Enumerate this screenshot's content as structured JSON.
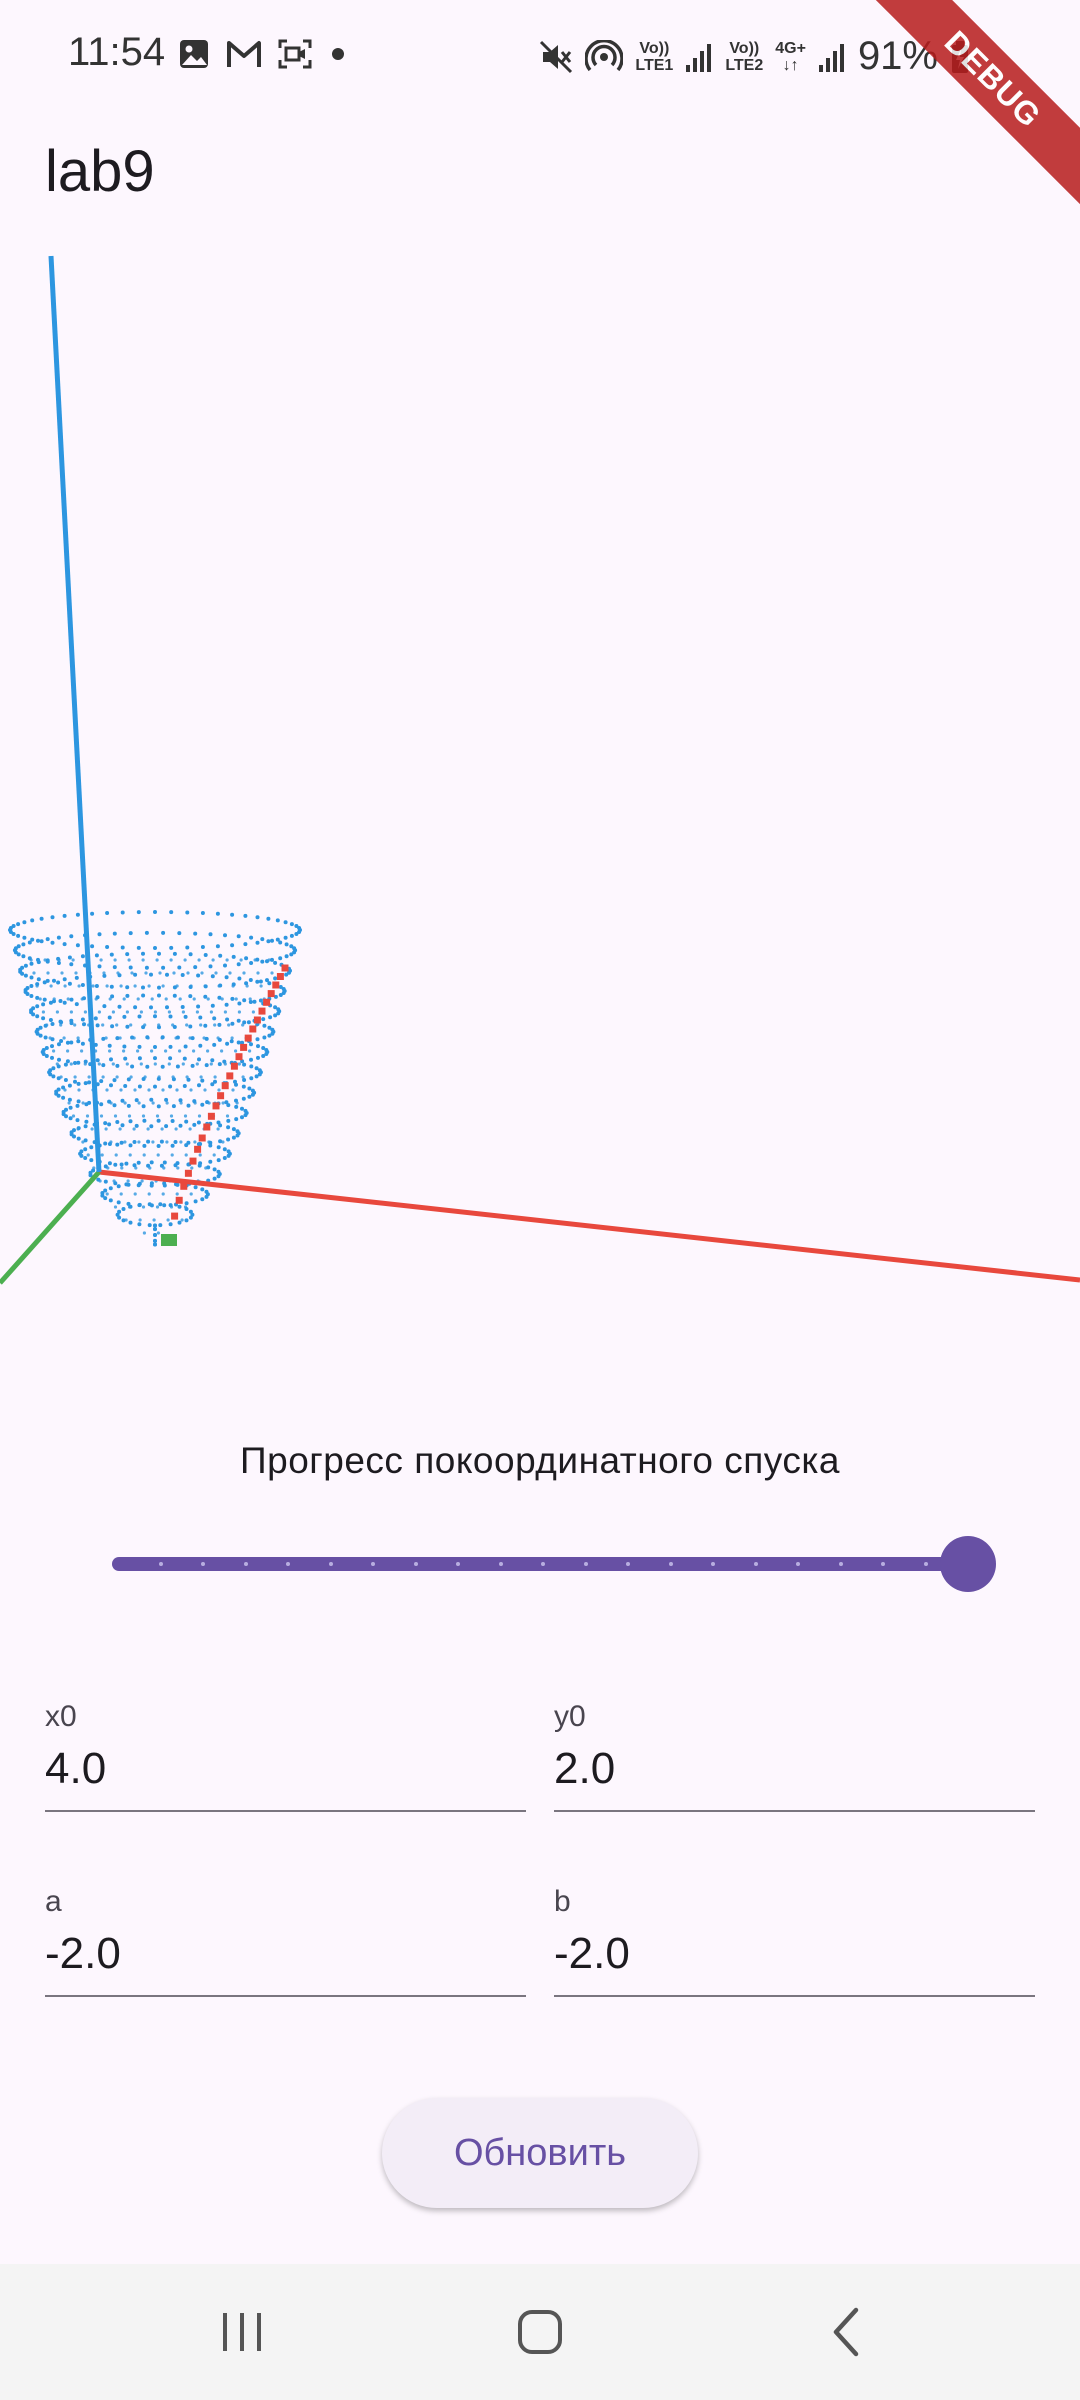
{
  "status_bar": {
    "time": "11:54",
    "left_icons": [
      "image-icon",
      "gmail-icon",
      "screen-record-icon",
      "notification-dot-icon"
    ],
    "right_icons": [
      "mute-icon",
      "hotspot-icon",
      "volte1-icon",
      "signal1-icon",
      "volte2-icon",
      "network-4g-icon",
      "signal2-icon",
      "battery-icon"
    ],
    "volte1_top": "Vo))",
    "volte1_bottom": "LTE1",
    "volte2_top": "Vo))",
    "volte2_bottom": "LTE2",
    "network_type": "4G+",
    "battery": "91%"
  },
  "debug_banner": "DEBUG",
  "app_bar": {
    "title": "lab9"
  },
  "plot": {
    "axis_colors": {
      "x": "#e8483d",
      "y": "#4caf50",
      "z": "#2d96e0"
    },
    "point_color": "#2d96e0",
    "path_color": "#e8483d"
  },
  "progress": {
    "label": "Прогресс покоординатного спуска",
    "value": 1.0,
    "divisions": 20,
    "accent": "#6750a4"
  },
  "inputs": {
    "x0": {
      "label": "x0",
      "value": "4.0"
    },
    "y0": {
      "label": "y0",
      "value": "2.0"
    },
    "a": {
      "label": "a",
      "value": "-2.0"
    },
    "b": {
      "label": "b",
      "value": "-2.0"
    }
  },
  "button": {
    "label": "Обновить"
  },
  "nav": {
    "items": [
      "recent-apps-icon",
      "home-icon",
      "back-icon"
    ]
  }
}
